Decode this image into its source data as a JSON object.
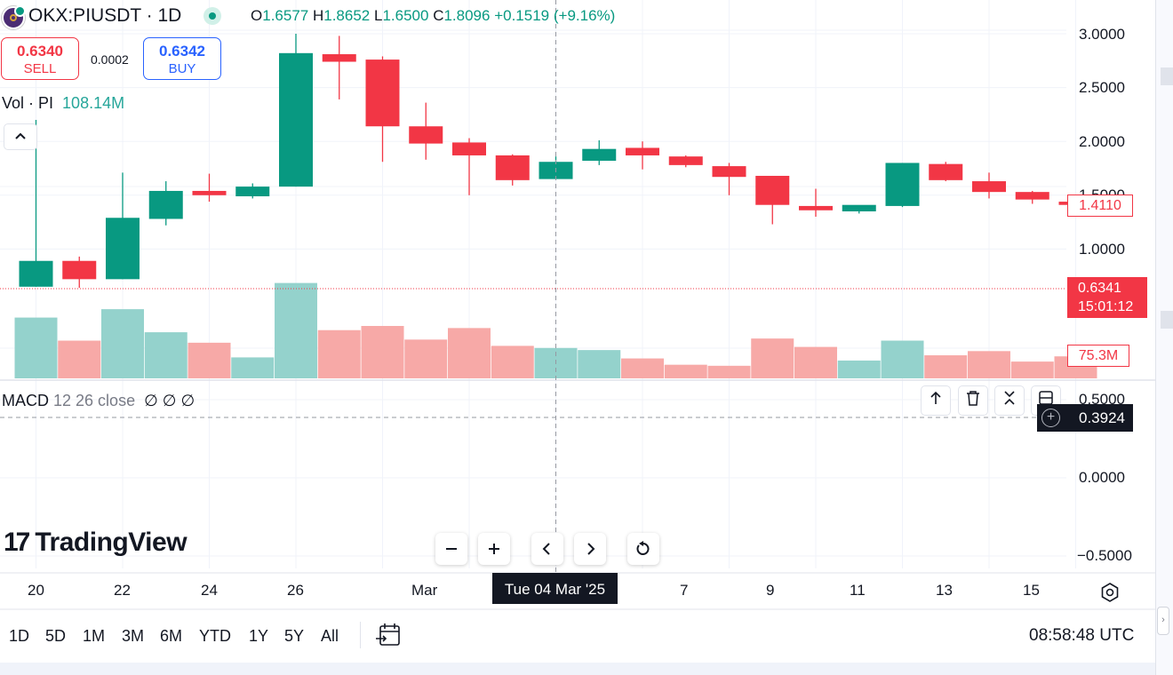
{
  "header": {
    "title": "OKX:PIUSDT · 1D",
    "ohlc": [
      {
        "k": "O",
        "v": "1.6577"
      },
      {
        "k": "H",
        "v": "1.8652"
      },
      {
        "k": "L",
        "v": "1.6500"
      },
      {
        "k": "C",
        "v": "1.8096"
      }
    ],
    "change": "+0.1519 (+9.16%)"
  },
  "trade": {
    "sell_price": "0.6340",
    "sell_label": "SELL",
    "spread": "0.0002",
    "buy_price": "0.6342",
    "buy_label": "BUY"
  },
  "volume_legend": {
    "name": "Vol · PI",
    "value": "108.14M"
  },
  "collapse_icon": "chevron-up-icon",
  "macd_legend": {
    "name": "MACD",
    "params": "12 26 close",
    "values": "∅ ∅ ∅"
  },
  "price_axis": {
    "ticks": [
      "3.0000",
      "2.5000",
      "2.0000",
      "1.5000",
      "1.0000"
    ],
    "last_tag": "1.4110",
    "current_price": "0.6341",
    "countdown": "15:01:12",
    "volume_tag": "75.3M"
  },
  "macd_axis": {
    "ticks": [
      "0.5000",
      "0.0000",
      "−0.5000"
    ],
    "crosshair_value": "0.3924"
  },
  "time_axis": {
    "labels": [
      "20",
      "22",
      "24",
      "26",
      "Mar",
      "7",
      "9",
      "11",
      "13",
      "15"
    ],
    "crosshair_label": "Tue 04 Mar '25"
  },
  "ranges": [
    "1D",
    "5D",
    "1M",
    "3M",
    "6M",
    "YTD",
    "1Y",
    "5Y",
    "All"
  ],
  "clock": "08:58:48 UTC",
  "brand": "TradingView",
  "colors": {
    "up": "#089981",
    "down": "#f23645",
    "up_vol": "#94d2cc",
    "down_vol": "#f7a9a7"
  },
  "chart_data": {
    "type": "candlestick",
    "interval": "1D",
    "candles": [
      {
        "date": "Feb 20",
        "open": 0.65,
        "high": 2.2,
        "low": 0.65,
        "close": 0.89,
        "volume": 0.58
      },
      {
        "date": "Feb 21",
        "open": 0.89,
        "high": 0.93,
        "low": 0.64,
        "close": 0.72,
        "volume": 0.36
      },
      {
        "date": "Feb 22",
        "open": 0.72,
        "high": 1.71,
        "low": 0.72,
        "close": 1.29,
        "volume": 0.66
      },
      {
        "date": "Feb 23",
        "open": 1.28,
        "high": 1.63,
        "low": 1.22,
        "close": 1.54,
        "volume": 0.44
      },
      {
        "date": "Feb 24",
        "open": 1.54,
        "high": 1.7,
        "low": 1.44,
        "close": 1.5,
        "volume": 0.34
      },
      {
        "date": "Feb 25",
        "open": 1.49,
        "high": 1.61,
        "low": 1.47,
        "close": 1.58,
        "volume": 0.2
      },
      {
        "date": "Feb 26",
        "open": 1.58,
        "high": 3.0,
        "low": 1.58,
        "close": 2.82,
        "volume": 0.91
      },
      {
        "date": "Feb 27",
        "open": 2.81,
        "high": 2.98,
        "low": 2.39,
        "close": 2.74,
        "volume": 0.46
      },
      {
        "date": "Feb 28",
        "open": 2.76,
        "high": 2.79,
        "low": 1.81,
        "close": 2.14,
        "volume": 0.5
      },
      {
        "date": "Mar 1",
        "open": 2.14,
        "high": 2.36,
        "low": 1.83,
        "close": 1.98,
        "volume": 0.37
      },
      {
        "date": "Mar 2",
        "open": 1.99,
        "high": 2.03,
        "low": 1.5,
        "close": 1.87,
        "volume": 0.48
      },
      {
        "date": "Mar 3",
        "open": 1.87,
        "high": 1.88,
        "low": 1.59,
        "close": 1.64,
        "volume": 0.31
      },
      {
        "date": "Mar 4",
        "open": 1.65,
        "high": 1.86,
        "low": 1.65,
        "close": 1.81,
        "volume": 0.29
      },
      {
        "date": "Mar 5",
        "open": 1.82,
        "high": 2.01,
        "low": 1.78,
        "close": 1.93,
        "volume": 0.27
      },
      {
        "date": "Mar 6",
        "open": 1.94,
        "high": 2.0,
        "low": 1.74,
        "close": 1.87,
        "volume": 0.19
      },
      {
        "date": "Mar 7",
        "open": 1.86,
        "high": 1.87,
        "low": 1.76,
        "close": 1.78,
        "volume": 0.13
      },
      {
        "date": "Mar 8",
        "open": 1.77,
        "high": 1.8,
        "low": 1.5,
        "close": 1.67,
        "volume": 0.12
      },
      {
        "date": "Mar 9",
        "open": 1.68,
        "high": 1.68,
        "low": 1.23,
        "close": 1.41,
        "volume": 0.38
      },
      {
        "date": "Mar 10",
        "open": 1.4,
        "high": 1.56,
        "low": 1.3,
        "close": 1.36,
        "volume": 0.3
      },
      {
        "date": "Mar 11",
        "open": 1.35,
        "high": 1.4,
        "low": 1.33,
        "close": 1.41,
        "volume": 0.17
      },
      {
        "date": "Mar 12",
        "open": 1.4,
        "high": 1.8,
        "low": 1.39,
        "close": 1.8,
        "volume": 0.36
      },
      {
        "date": "Mar 13",
        "open": 1.79,
        "high": 1.81,
        "low": 1.63,
        "close": 1.64,
        "volume": 0.22
      },
      {
        "date": "Mar 14",
        "open": 1.63,
        "high": 1.71,
        "low": 1.47,
        "close": 1.53,
        "volume": 0.26
      },
      {
        "date": "Mar 15",
        "open": 1.53,
        "high": 1.54,
        "low": 1.42,
        "close": 1.46,
        "volume": 0.16
      },
      {
        "date": "Mar 16",
        "open": 1.44,
        "high": 1.44,
        "low": 1.38,
        "close": 1.41,
        "volume": 0.21
      }
    ],
    "y_range": [
      0.6,
      3.0
    ],
    "crosshair_date": "Mar 4"
  }
}
